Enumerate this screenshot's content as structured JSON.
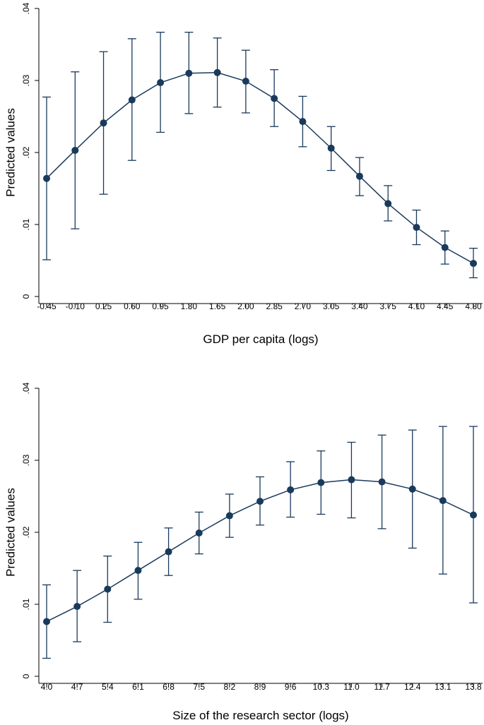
{
  "chart_data": [
    {
      "type": "line",
      "style": "point estimates with confidence-interval error bars",
      "xlabel": "GDP per capita (logs)",
      "ylabel": "Predicted values",
      "x_tick_labels": [
        "-0.45",
        "-0.10",
        "0.25",
        "0.60",
        "0.95",
        "1.30",
        "1.65",
        "2.00",
        "2.35",
        "2.70",
        "3.05",
        "3.40",
        "3.75",
        "4.10",
        "4.45",
        "4.80"
      ],
      "y_ticks": [
        0,
        0.01,
        0.02,
        0.03,
        0.04
      ],
      "y_tick_labels": [
        "0",
        ".01",
        ".02",
        ".03",
        ".04"
      ],
      "ylim": [
        0,
        0.04
      ],
      "grid": false,
      "series": [
        {
          "name": "Predicted values",
          "values": [
            0.0164,
            0.0203,
            0.0241,
            0.0273,
            0.0297,
            0.031,
            0.0311,
            0.0299,
            0.0275,
            0.0243,
            0.0206,
            0.0167,
            0.0129,
            0.0096,
            0.0068,
            0.0046
          ],
          "lower": [
            0.0051,
            0.0094,
            0.0142,
            0.0189,
            0.0228,
            0.0254,
            0.0263,
            0.0255,
            0.0236,
            0.0208,
            0.0175,
            0.014,
            0.0105,
            0.0072,
            0.0045,
            0.0026
          ],
          "upper": [
            0.0277,
            0.0312,
            0.034,
            0.0358,
            0.0367,
            0.0367,
            0.0359,
            0.0342,
            0.0315,
            0.0278,
            0.0236,
            0.0193,
            0.0154,
            0.012,
            0.0091,
            0.0067
          ]
        }
      ]
    },
    {
      "type": "line",
      "style": "point estimates with confidence-interval error bars",
      "xlabel": "Size of the research sector (logs)",
      "ylabel": "Predicted values",
      "x_tick_labels": [
        "4.0",
        "4.7",
        "5.4",
        "6.1",
        "6.8",
        "7.5",
        "8.2",
        "8.9",
        "9.6",
        "10.3",
        "11.0",
        "11.7",
        "12.4",
        "13.1",
        "13.8"
      ],
      "y_ticks": [
        0,
        0.01,
        0.02,
        0.03,
        0.04
      ],
      "y_tick_labels": [
        "0",
        ".01",
        ".02",
        ".03",
        ".04"
      ],
      "ylim": [
        0,
        0.04
      ],
      "grid": false,
      "series": [
        {
          "name": "Predicted values",
          "values": [
            0.0076,
            0.0097,
            0.0121,
            0.0147,
            0.0173,
            0.0199,
            0.0223,
            0.0243,
            0.0259,
            0.0269,
            0.0273,
            0.027,
            0.026,
            0.0244,
            0.0224
          ],
          "lower": [
            0.0025,
            0.0048,
            0.0075,
            0.0107,
            0.014,
            0.017,
            0.0193,
            0.021,
            0.0221,
            0.0225,
            0.022,
            0.0205,
            0.0178,
            0.0142,
            0.0102
          ],
          "upper": [
            0.0127,
            0.0147,
            0.0167,
            0.0186,
            0.0206,
            0.0228,
            0.0253,
            0.0277,
            0.0298,
            0.0313,
            0.0325,
            0.0335,
            0.0342,
            0.0347,
            0.0347
          ]
        }
      ]
    }
  ],
  "colors": {
    "marker": "#1a3a5c",
    "line": "#1a3a5c",
    "axis": "#000000",
    "background": "#ffffff"
  }
}
